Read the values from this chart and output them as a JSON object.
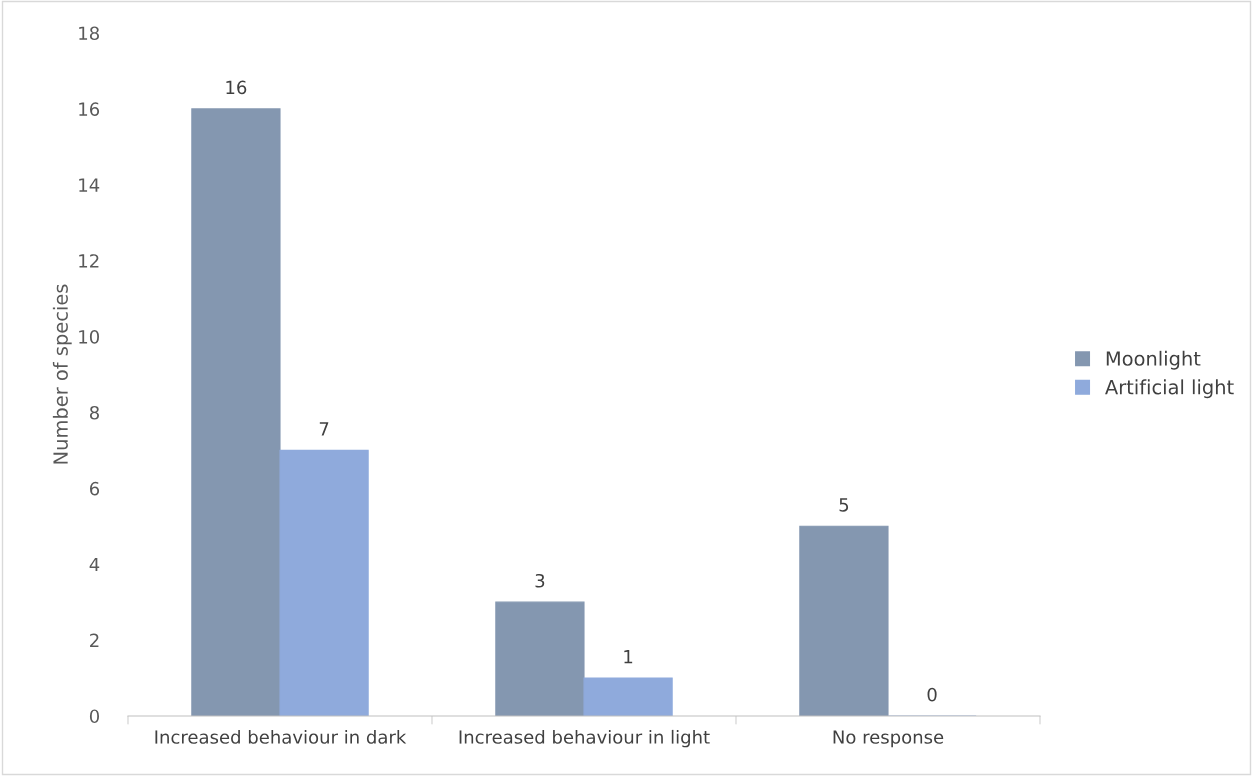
{
  "chart_data": {
    "type": "bar",
    "ylabel": "Number of species",
    "categories": [
      "Increased behaviour in dark",
      "Increased behaviour in light",
      "No response"
    ],
    "series": [
      {
        "name": "Moonlight",
        "color": "#8497b0",
        "values": [
          16,
          3,
          5
        ]
      },
      {
        "name": "Artificial light",
        "color": "#8faadc",
        "values": [
          7,
          1,
          0
        ]
      }
    ],
    "ylim": [
      0,
      18
    ],
    "yticks": [
      0,
      2,
      4,
      6,
      8,
      10,
      12,
      14,
      16,
      18
    ],
    "data_labels": true,
    "grid": false,
    "legend": "right"
  }
}
